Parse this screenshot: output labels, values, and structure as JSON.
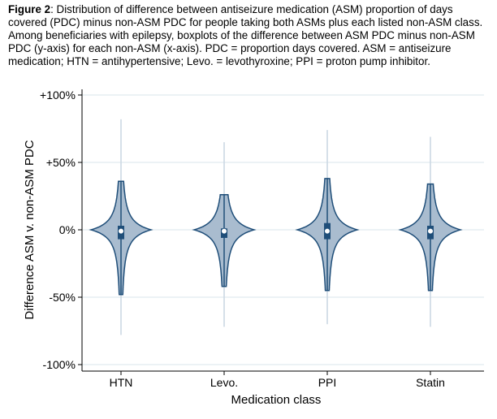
{
  "caption": {
    "label": "Figure 2",
    "text": ": Distribution of difference between antiseizure medication (ASM) proportion of days covered (PDC) minus non-ASM PDC for people taking both ASMs plus each listed non-ASM class. Among beneficiaries with epilepsy, boxplots of the difference between ASM PDC minus non-ASM PDC (y-axis) for each non-ASM (x-axis). PDC = proportion days covered. ASM = antiseizure medication; HTN = antihypertensive; Levo. = levothyroxine; PPI = proton pump inhibitor."
  },
  "chart_data": {
    "type": "violin",
    "xlabel": "Medication class",
    "ylabel": "Difference ASM v. non-ASM PDC",
    "ylim": [
      -100,
      100
    ],
    "yticks": [
      {
        "v": 100,
        "label": "+100%"
      },
      {
        "v": 50,
        "label": "+50%"
      },
      {
        "v": 0,
        "label": "0%"
      },
      {
        "v": -50,
        "label": "-50%"
      },
      {
        "v": -100,
        "label": "-100%"
      }
    ],
    "grid": true,
    "categories": [
      "HTN",
      "Levo.",
      "PPI",
      "Statin"
    ],
    "series": [
      {
        "name": "HTN",
        "min": -78,
        "max": 82,
        "body_low": -48,
        "body_high": 36,
        "q1": -7,
        "q3": 3,
        "median": -1
      },
      {
        "name": "Levo.",
        "min": -72,
        "max": 65,
        "body_low": -42,
        "body_high": 26,
        "q1": -6,
        "q3": 1,
        "median": -1
      },
      {
        "name": "PPI",
        "min": -70,
        "max": 74,
        "body_low": -45,
        "body_high": 38,
        "q1": -7,
        "q3": 5,
        "median": -1
      },
      {
        "name": "Statin",
        "min": -72,
        "max": 69,
        "body_low": -45,
        "body_high": 34,
        "q1": -7,
        "q3": 3,
        "median": -1
      }
    ],
    "colors": {
      "fill": "#a9bccf",
      "line": "#1f4e79",
      "grid": "#e6eef2"
    }
  }
}
